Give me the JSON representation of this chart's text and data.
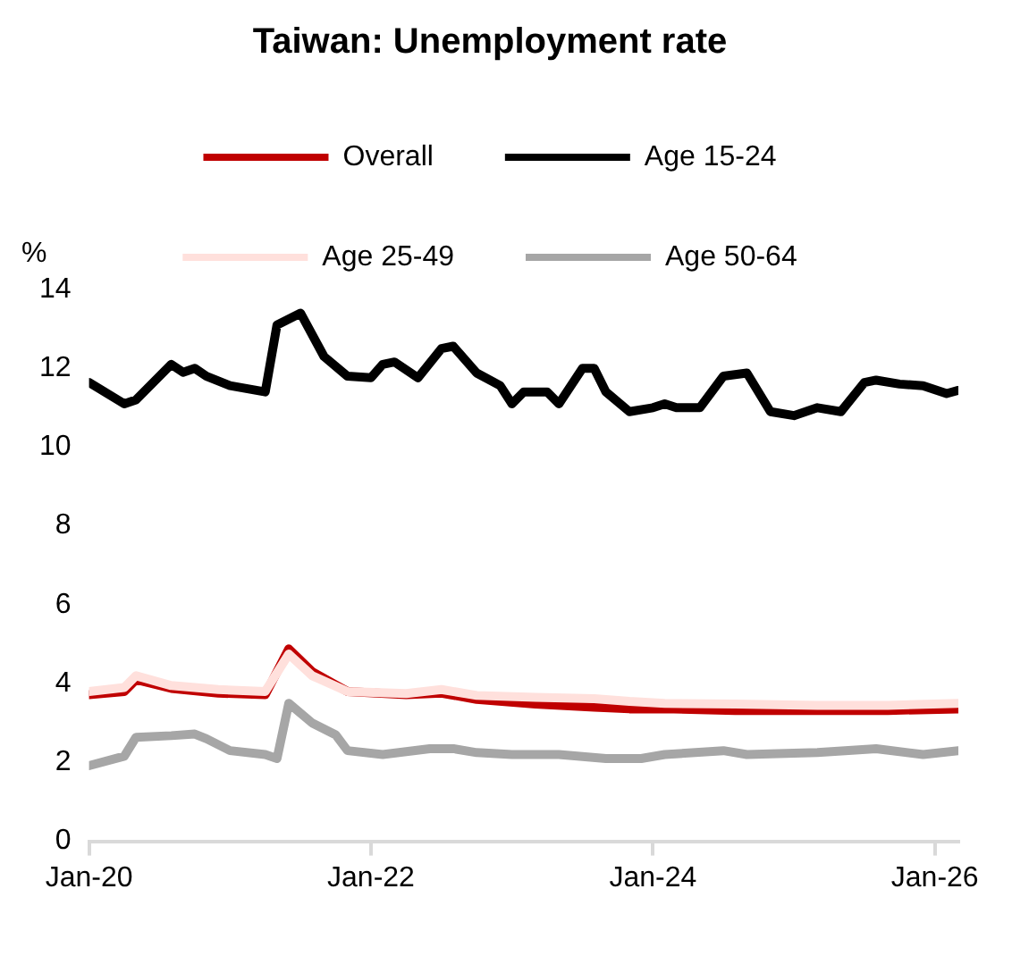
{
  "chart_data": {
    "type": "line",
    "title": "Taiwan: Unemployment rate",
    "ylabel": "%",
    "x": [
      "2020-01",
      "2020-04",
      "2020-05",
      "2020-08",
      "2020-09",
      "2020-10",
      "2020-11",
      "2021-01",
      "2021-04",
      "2021-05",
      "2021-07",
      "2021-09",
      "2021-11",
      "2022-01",
      "2022-02",
      "2022-03",
      "2022-05",
      "2022-07",
      "2022-08",
      "2022-10",
      "2022-12",
      "2023-01",
      "2023-02",
      "2023-04",
      "2023-05",
      "2023-07",
      "2023-08",
      "2023-09",
      "2023-11",
      "2024-01",
      "2024-02",
      "2024-03",
      "2024-05",
      "2024-07",
      "2024-09",
      "2024-11",
      "2025-01",
      "2025-03",
      "2025-05",
      "2025-07",
      "2025-08",
      "2025-10",
      "2025-12",
      "2026-02",
      "2026-03"
    ],
    "series": [
      {
        "name": "Overall",
        "color": "#c00000",
        "x": [
          "2020-01",
          "2020-04",
          "2020-05",
          "2020-08",
          "2020-12",
          "2021-04",
          "2021-06",
          "2021-08",
          "2021-11",
          "2022-04",
          "2022-07",
          "2022-10",
          "2023-03",
          "2023-08",
          "2023-11",
          "2024-02",
          "2024-08",
          "2025-03",
          "2025-09",
          "2026-03"
        ],
        "values": [
          3.72,
          3.8,
          4.1,
          3.88,
          3.76,
          3.72,
          4.88,
          4.3,
          3.8,
          3.72,
          3.76,
          3.6,
          3.48,
          3.4,
          3.36,
          3.36,
          3.32,
          3.32,
          3.32,
          3.36
        ]
      },
      {
        "name": "Age 15-24",
        "color": "#000000",
        "values": [
          11.64,
          11.1,
          11.2,
          12.1,
          11.9,
          12.0,
          11.8,
          11.56,
          11.4,
          13.1,
          13.4,
          12.3,
          11.8,
          11.76,
          12.1,
          12.16,
          11.76,
          12.5,
          12.56,
          11.88,
          11.56,
          11.1,
          11.4,
          11.4,
          11.1,
          12.0,
          12.0,
          11.4,
          10.9,
          11.0,
          11.1,
          11.0,
          11.0,
          11.8,
          11.88,
          10.9,
          10.8,
          11.0,
          10.9,
          11.64,
          11.7,
          11.6,
          11.56,
          11.36,
          11.44
        ]
      },
      {
        "name": "Age 25-49",
        "color": "#ffe0dc",
        "x": [
          "2020-01",
          "2020-04",
          "2020-05",
          "2020-08",
          "2020-12",
          "2021-04",
          "2021-06",
          "2021-08",
          "2021-11",
          "2022-04",
          "2022-07",
          "2022-10",
          "2023-03",
          "2023-08",
          "2023-11",
          "2024-02",
          "2024-08",
          "2025-03",
          "2025-09",
          "2026-03"
        ],
        "values": [
          3.8,
          3.9,
          4.2,
          3.95,
          3.85,
          3.8,
          4.75,
          4.2,
          3.8,
          3.75,
          3.85,
          3.7,
          3.65,
          3.62,
          3.55,
          3.5,
          3.48,
          3.45,
          3.45,
          3.5
        ]
      },
      {
        "name": "Age 50-64",
        "color": "#a6a6a6",
        "x": [
          "2020-01",
          "2020-04",
          "2020-05",
          "2020-08",
          "2020-10",
          "2020-11",
          "2021-01",
          "2021-04",
          "2021-05",
          "2021-06",
          "2021-08",
          "2021-10",
          "2021-11",
          "2022-02",
          "2022-06",
          "2022-08",
          "2022-10",
          "2023-01",
          "2023-05",
          "2023-09",
          "2023-12",
          "2024-02",
          "2024-07",
          "2024-09",
          "2025-03",
          "2025-08",
          "2025-12",
          "2026-03"
        ],
        "values": [
          1.92,
          2.16,
          2.64,
          2.68,
          2.72,
          2.6,
          2.3,
          2.2,
          2.1,
          3.5,
          3.0,
          2.7,
          2.3,
          2.2,
          2.35,
          2.35,
          2.25,
          2.2,
          2.2,
          2.1,
          2.1,
          2.2,
          2.3,
          2.2,
          2.25,
          2.35,
          2.2,
          2.3
        ]
      }
    ],
    "xlim": [
      "2020-01",
      "2026-03"
    ],
    "xticks": [
      {
        "value": "2020-01",
        "label": "Jan-20"
      },
      {
        "value": "2022-01",
        "label": "Jan-22"
      },
      {
        "value": "2024-01",
        "label": "Jan-24"
      },
      {
        "value": "2026-01",
        "label": "Jan-26"
      }
    ],
    "ylim": [
      0,
      14
    ],
    "yticks": [
      0,
      2,
      4,
      6,
      8,
      10,
      12,
      14
    ],
    "grid": false,
    "legend": "top",
    "marker": "none",
    "line_style": "solid"
  }
}
